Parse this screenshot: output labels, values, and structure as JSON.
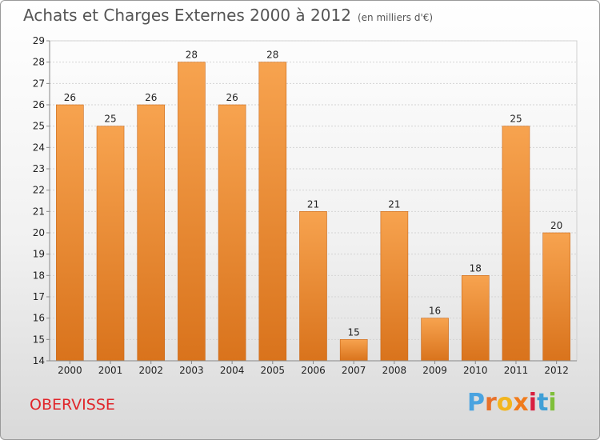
{
  "header": {
    "title": "Achats et Charges Externes 2000 à 2012",
    "subtitle": "(en milliers d'€)"
  },
  "footer": {
    "town": "OBERVISSE",
    "logo_letters": [
      "P",
      "r",
      "o",
      "x",
      "i",
      "t",
      "i"
    ]
  },
  "colors": {
    "bar_top": "#f7a34f",
    "bar_bottom": "#d9731c",
    "town": "#e0262b",
    "logo": [
      "#4aa3e0",
      "#e8712a",
      "#f2b51f",
      "#f07b1c",
      "#d81f3f",
      "#3f9fd6",
      "#7fbf3a"
    ]
  },
  "chart_data": {
    "type": "bar",
    "title": "Achats et Charges Externes 2000 à 2012",
    "subtitle": "(en milliers d'€)",
    "categories": [
      "2000",
      "2001",
      "2002",
      "2003",
      "2004",
      "2005",
      "2006",
      "2007",
      "2008",
      "2009",
      "2010",
      "2011",
      "2012"
    ],
    "values": [
      26,
      25,
      26,
      28,
      26,
      28,
      21,
      15,
      21,
      16,
      18,
      25,
      20
    ],
    "xlabel": "",
    "ylabel": "",
    "ylim": [
      14,
      29
    ],
    "yticks": [
      14,
      15,
      16,
      17,
      18,
      19,
      20,
      21,
      22,
      23,
      24,
      25,
      26,
      27,
      28,
      29
    ],
    "grid": true,
    "legend": "none"
  }
}
